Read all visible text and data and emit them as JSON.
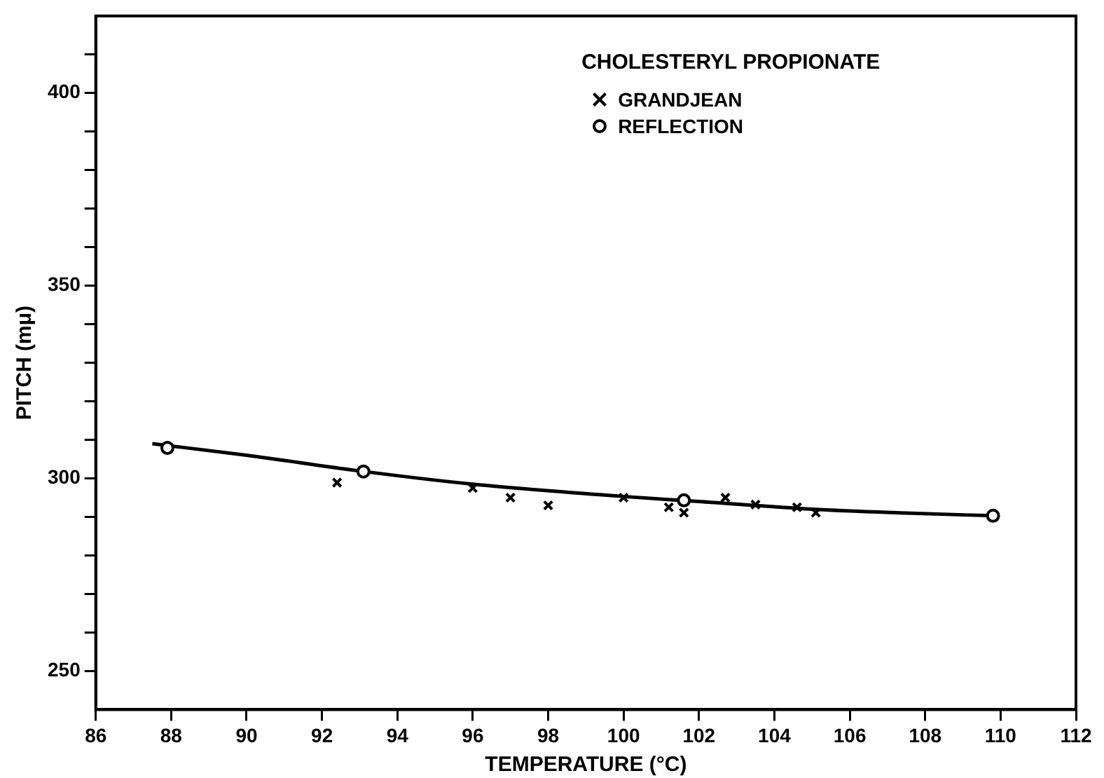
{
  "chart_data": {
    "type": "scatter",
    "xlabel": "TEMPERATURE (°C)",
    "ylabel": "PITCH (mμ)",
    "legend_title": "CHOLESTERYL PROPIONATE",
    "legend": "top right",
    "grid": false,
    "xlim": [
      86,
      112
    ],
    "xticks": [
      86,
      88,
      90,
      92,
      94,
      96,
      98,
      100,
      102,
      104,
      106,
      108,
      110,
      112
    ],
    "ylim": [
      240,
      420
    ],
    "yticks": [
      {
        "value": 250,
        "label": "250"
      },
      {
        "value": 260,
        "label": null
      },
      {
        "value": 270,
        "label": null
      },
      {
        "value": 280,
        "label": null
      },
      {
        "value": 290,
        "label": null
      },
      {
        "value": 300,
        "label": "300"
      },
      {
        "value": 310,
        "label": null
      },
      {
        "value": 320,
        "label": null
      },
      {
        "value": 330,
        "label": null
      },
      {
        "value": 340,
        "label": null
      },
      {
        "value": 350,
        "label": "350"
      },
      {
        "value": 360,
        "label": null
      },
      {
        "value": 370,
        "label": null
      },
      {
        "value": 380,
        "label": null
      },
      {
        "value": 390,
        "label": null
      },
      {
        "value": 400,
        "label": "400"
      },
      {
        "value": 410,
        "label": null
      }
    ],
    "series": [
      {
        "name": "GRANDJEAN",
        "marker": "cross",
        "color": "#000000",
        "x": [
          92.4,
          96.0,
          97.0,
          98.0,
          100.0,
          101.2,
          101.6,
          102.7,
          103.5,
          104.6,
          105.1
        ],
        "values": [
          298.9,
          297.5,
          295.0,
          293.0,
          295.0,
          292.5,
          291.1,
          295.0,
          293.2,
          292.5,
          291.1
        ]
      },
      {
        "name": "REFLECTION",
        "marker": "circle",
        "color": "#000000",
        "x": [
          87.9,
          93.1,
          101.6,
          109.8
        ],
        "values": [
          307.9,
          301.8,
          294.3,
          290.3
        ]
      },
      {
        "type": "line",
        "marker": "none",
        "line_style": "solid",
        "color": "#000000",
        "x": [
          87.5,
          90,
          93.1,
          96,
          100,
          102,
          105,
          107.5,
          109.8
        ],
        "values": [
          309,
          306,
          301.8,
          298.5,
          295.3,
          294,
          292,
          291,
          290.3
        ]
      }
    ]
  }
}
